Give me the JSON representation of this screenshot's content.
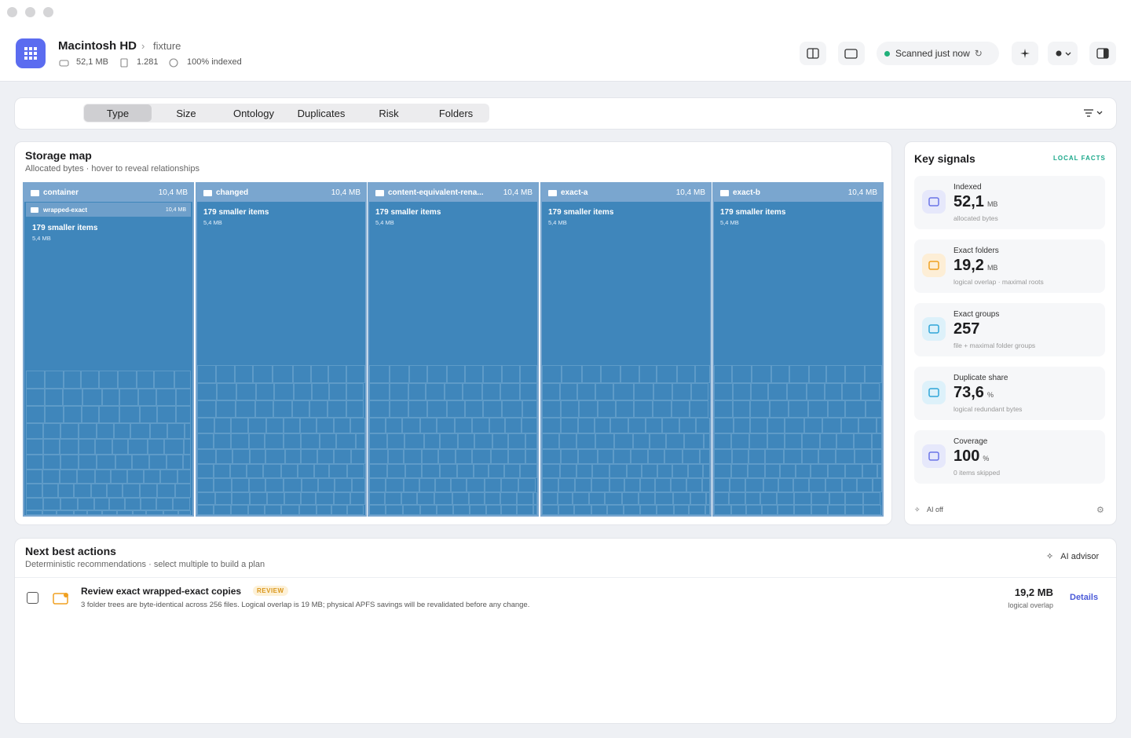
{
  "header": {
    "title": "Macintosh HD",
    "crumb": "fixture",
    "stats": [
      "52,1 MB",
      "1.281",
      "100% indexed"
    ],
    "scan_status": "Scanned just now"
  },
  "tabs": [
    "Type",
    "Size",
    "Ontology",
    "Duplicates",
    "Risk",
    "Folders"
  ],
  "storage_map": {
    "title": "Storage map",
    "subtitle": "Allocated bytes · hover to reveal relationships",
    "folders": [
      {
        "name": "container",
        "size": "10,4 MB",
        "child": {
          "name": "wrapped-exact",
          "size": "10,4 MB"
        },
        "summary": "179 smaller items",
        "summary_size": "5,4 MB"
      },
      {
        "name": "changed",
        "size": "10,4 MB",
        "summary": "179 smaller items",
        "summary_size": "5,4 MB"
      },
      {
        "name": "content-equivalent-rena...",
        "size": "10,4 MB",
        "summary": "179 smaller items",
        "summary_size": "5,4 MB"
      },
      {
        "name": "exact-a",
        "size": "10,4 MB",
        "summary": "179 smaller items",
        "summary_size": "5,4 MB"
      },
      {
        "name": "exact-b",
        "size": "10,4 MB",
        "summary": "179 smaller items",
        "summary_size": "5,4 MB"
      }
    ]
  },
  "key_signals": {
    "title": "Key signals",
    "badge": "LOCAL FACTS",
    "items": [
      {
        "label": "Indexed",
        "value": "52,1",
        "unit": "MB",
        "note": "allocated bytes"
      },
      {
        "label": "Exact folders",
        "value": "19,2",
        "unit": "MB",
        "note": "logical overlap · maximal roots"
      },
      {
        "label": "Exact groups",
        "value": "257",
        "note": "file + maximal folder groups"
      },
      {
        "label": "Duplicate share",
        "value": "73,6",
        "unit": "%",
        "note": "logical redundant bytes"
      },
      {
        "label": "Coverage",
        "value": "100",
        "unit": "%",
        "note": "0 items skipped"
      }
    ],
    "footer": "AI off"
  },
  "actions": {
    "title": "Next best actions",
    "subtitle": "Deterministic recommendations · select multiple to build a plan",
    "advisor": "AI advisor",
    "items": [
      {
        "title": "Review exact wrapped-exact copies",
        "tag": "REVIEW",
        "description": "3 folder trees are byte-identical across 256 files. Logical overlap is 19 MB; physical APFS savings will be revalidated before any change.",
        "size": "19,2 MB",
        "size_note": "logical overlap",
        "link": "Details"
      }
    ]
  }
}
